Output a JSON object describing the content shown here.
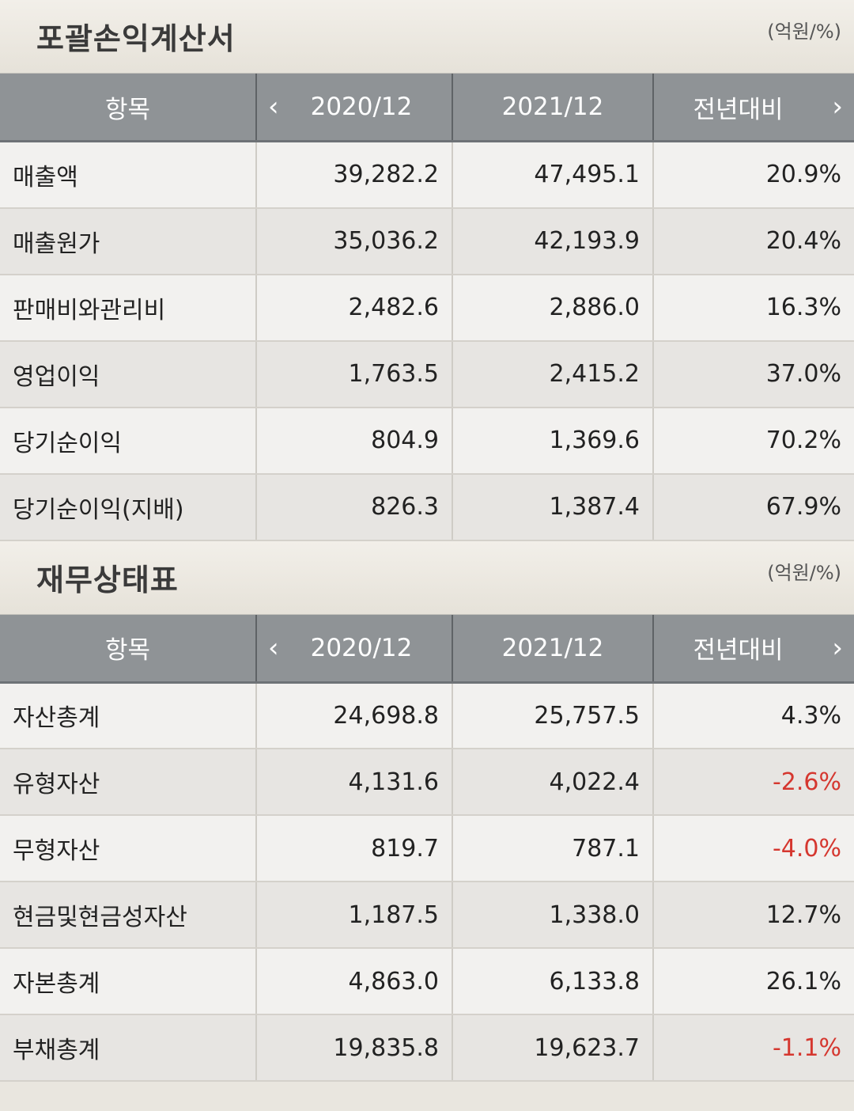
{
  "income": {
    "title": "포괄손익계산서",
    "unit": "(억원/%)",
    "headers": {
      "item": "항목",
      "year1": "2020/12",
      "year2": "2021/12",
      "yoy": "전년대비"
    },
    "rows": [
      {
        "label": "매출액",
        "v1": "39,282.2",
        "v2": "47,495.1",
        "yoy": "20.9%"
      },
      {
        "label": "매출원가",
        "v1": "35,036.2",
        "v2": "42,193.9",
        "yoy": "20.4%"
      },
      {
        "label": "판매비와관리비",
        "v1": "2,482.6",
        "v2": "2,886.0",
        "yoy": "16.3%"
      },
      {
        "label": "영업이익",
        "v1": "1,763.5",
        "v2": "2,415.2",
        "yoy": "37.0%"
      },
      {
        "label": "당기순이익",
        "v1": "804.9",
        "v2": "1,369.6",
        "yoy": "70.2%"
      },
      {
        "label": "당기순이익(지배)",
        "v1": "826.3",
        "v2": "1,387.4",
        "yoy": "67.9%"
      }
    ]
  },
  "balance": {
    "title": "재무상태표",
    "unit": "(억원/%)",
    "headers": {
      "item": "항목",
      "year1": "2020/12",
      "year2": "2021/12",
      "yoy": "전년대비"
    },
    "rows": [
      {
        "label": "자산총계",
        "v1": "24,698.8",
        "v2": "25,757.5",
        "yoy": "4.3%"
      },
      {
        "label": "유형자산",
        "v1": "4,131.6",
        "v2": "4,022.4",
        "yoy": "-2.6%"
      },
      {
        "label": "무형자산",
        "v1": "819.7",
        "v2": "787.1",
        "yoy": "-4.0%"
      },
      {
        "label": "현금및현금성자산",
        "v1": "1,187.5",
        "v2": "1,338.0",
        "yoy": "12.7%"
      },
      {
        "label": "자본총계",
        "v1": "4,863.0",
        "v2": "6,133.8",
        "yoy": "26.1%"
      },
      {
        "label": "부채총계",
        "v1": "19,835.8",
        "v2": "19,623.7",
        "yoy": "-1.1%"
      }
    ]
  },
  "icons": {
    "prev": "chevron-left-icon",
    "next": "chevron-right-icon"
  },
  "colors": {
    "negative": "#d5372f",
    "header_bg": "#8f9396"
  }
}
